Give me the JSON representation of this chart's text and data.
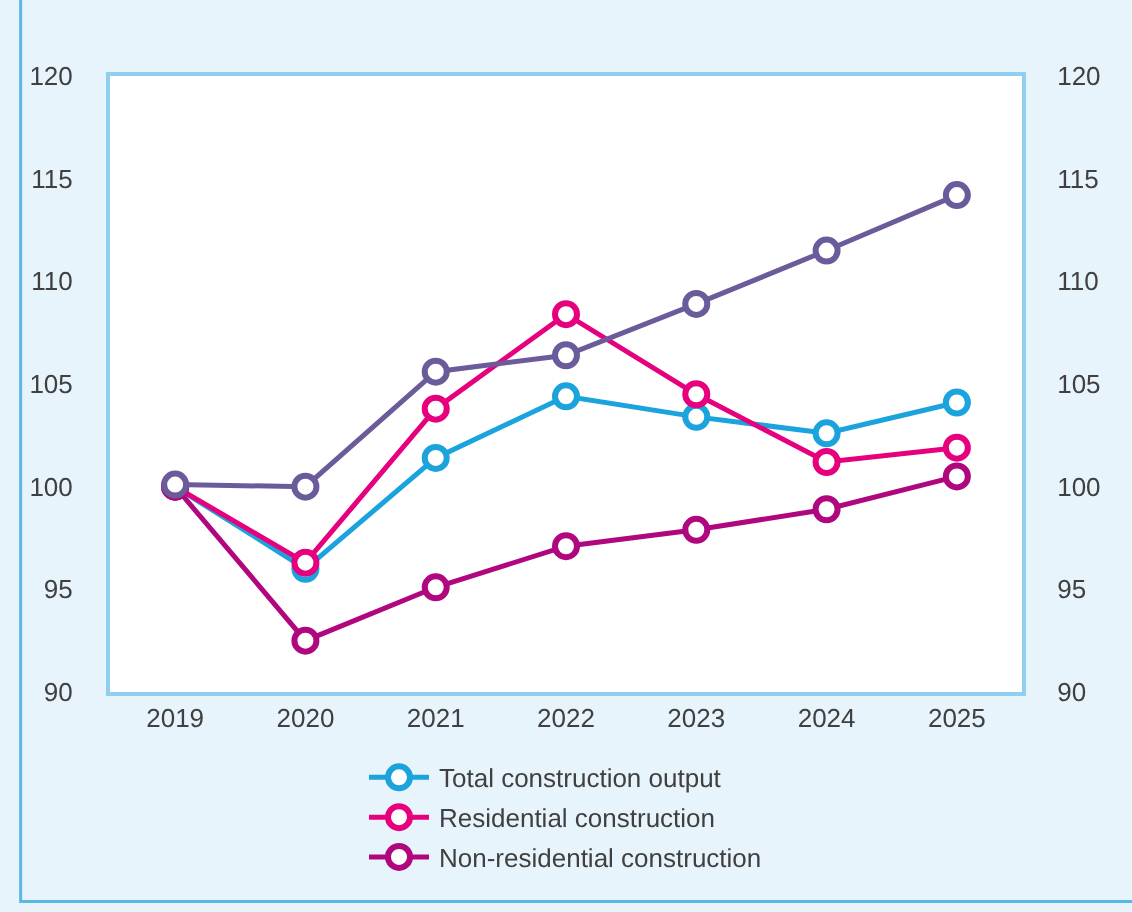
{
  "chart_data": {
    "type": "line",
    "categories": [
      "2019",
      "2020",
      "2021",
      "2022",
      "2023",
      "2024",
      "2025"
    ],
    "series": [
      {
        "name": "Total construction output",
        "color": "#1aa3dc",
        "values": [
          100,
          96.0,
          101.4,
          104.4,
          103.4,
          102.6,
          104.1
        ]
      },
      {
        "name": "Residential construction",
        "color": "#e6007e",
        "values": [
          100,
          96.3,
          103.8,
          108.4,
          104.5,
          101.2,
          101.9
        ]
      },
      {
        "name": "Non-residential construction",
        "color": "#b0077f",
        "values": [
          100,
          92.5,
          95.1,
          97.1,
          97.9,
          98.9,
          100.5
        ]
      },
      {
        "color": "#6b5b9a",
        "values": [
          100.1,
          100.0,
          105.6,
          106.4,
          108.9,
          111.5,
          114.2
        ]
      }
    ],
    "ylim": [
      90,
      120
    ],
    "yticks": [
      90,
      95,
      100,
      105,
      110,
      115,
      120
    ],
    "y2lim": [
      90,
      120
    ],
    "y2ticks": [
      90,
      95,
      100,
      105,
      110,
      115,
      120
    ],
    "legend": "bottom",
    "marker": "circle",
    "line_style": "solid"
  }
}
